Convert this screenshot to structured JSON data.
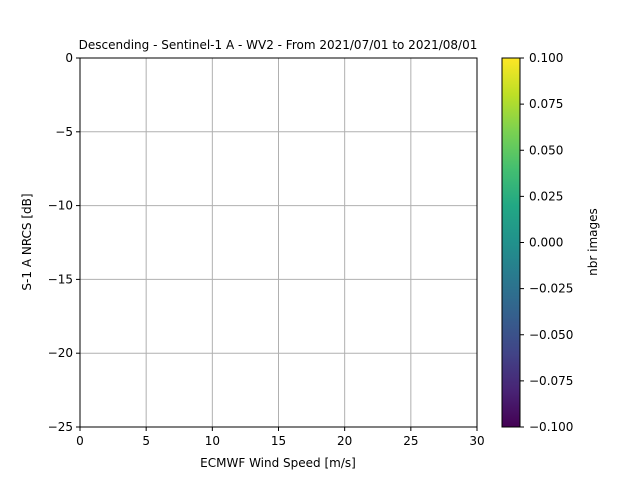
{
  "chart_data": {
    "type": "heatmap",
    "title": "Descending - Sentinel-1 A - WV2 - From 2021/07/01 to 2021/08/01",
    "xlabel": "ECMWF Wind Speed [m/s]",
    "ylabel": "S-1 A NRCS [dB]",
    "xlim": [
      0,
      30
    ],
    "ylim": [
      -25,
      0
    ],
    "xticks": [
      0,
      5,
      10,
      15,
      20,
      25,
      30
    ],
    "xtick_labels": [
      "0",
      "5",
      "10",
      "15",
      "20",
      "25",
      "30"
    ],
    "yticks": [
      0,
      -5,
      -10,
      -15,
      -20,
      -25
    ],
    "ytick_labels": [
      "0",
      "−5",
      "−10",
      "−15",
      "−20",
      "−25"
    ],
    "grid": true,
    "values": [],
    "colorbar": {
      "label": "nbr images",
      "colormap": "viridis",
      "range": [
        -0.1,
        0.1
      ],
      "ticks": [
        0.1,
        0.075,
        0.05,
        0.025,
        0.0,
        -0.025,
        -0.05,
        -0.075,
        -0.1
      ],
      "tick_labels": [
        "0.100",
        "0.075",
        "0.050",
        "0.025",
        "0.000",
        "−0.025",
        "−0.050",
        "−0.075",
        "−0.100"
      ]
    }
  },
  "colors": {
    "grid": "#b0b0b0",
    "axes": "#000000",
    "background": "#ffffff"
  }
}
